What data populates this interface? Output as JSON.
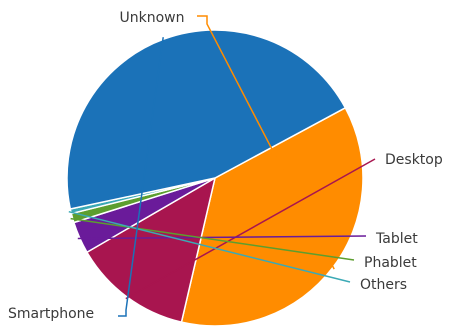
{
  "chart_data": {
    "type": "pie",
    "slices": [
      {
        "label": "Unknown",
        "value": 36.5,
        "color": "#FF8C00"
      },
      {
        "label": "Desktop",
        "value": 13.0,
        "color": "#A8154F"
      },
      {
        "label": "Tablet",
        "value": 3.5,
        "color": "#6A1B9A"
      },
      {
        "label": "Phablet",
        "value": 1.0,
        "color": "#5C9E2F"
      },
      {
        "label": "Others",
        "value": 0.5,
        "color": "#3BA9B5"
      },
      {
        "label": "Smartphone",
        "value": 45.5,
        "color": "#1B72B8"
      }
    ],
    "start_angle_deg": -28.3,
    "legend": "none"
  }
}
